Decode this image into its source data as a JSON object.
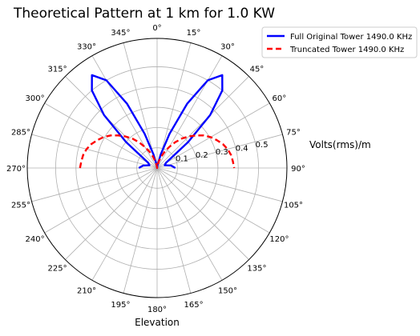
{
  "chart_data": {
    "type": "line",
    "projection": "polar",
    "title": "Theoretical Pattern at 1 km for 1.0 KW",
    "xlabel": "Elevation",
    "ylabel": "Volts(rms)/m",
    "theta_zero": "top",
    "theta_direction": "clockwise",
    "theta_ticks_deg": [
      0,
      15,
      30,
      45,
      60,
      75,
      90,
      105,
      120,
      135,
      150,
      165,
      180,
      195,
      210,
      225,
      240,
      255,
      270,
      285,
      300,
      315,
      330,
      345
    ],
    "theta_tick_labels": [
      "0°",
      "15°",
      "30°",
      "45°",
      "60°",
      "75°",
      "90°",
      "105°",
      "120°",
      "135°",
      "150°",
      "165°",
      "180°",
      "195°",
      "210°",
      "225°",
      "240°",
      "255°",
      "270°",
      "285°",
      "300°",
      "315°",
      "330°",
      "345°"
    ],
    "r_ticks": [
      0.1,
      0.2,
      0.3,
      0.4,
      0.5
    ],
    "r_tick_labels": [
      "0.1",
      "0.2",
      "0.3",
      "0.4",
      "0.5"
    ],
    "rlim": [
      0,
      0.64
    ],
    "grid": true,
    "legend_position": "top-right",
    "series": [
      {
        "name": "Full Original Tower 1490.0 KHz",
        "color": "#0000ff",
        "linestyle": "solid",
        "theta_deg": [
          -90,
          -80,
          -70,
          -60,
          -50,
          -45,
          -40,
          -35,
          -30,
          -25,
          -20,
          -15,
          -10,
          -5,
          0,
          5,
          10,
          15,
          20,
          25,
          30,
          35,
          40,
          45,
          50,
          60,
          70,
          80,
          90
        ],
        "r": [
          0.09,
          0.07,
          0.04,
          0.05,
          0.2,
          0.37,
          0.5,
          0.56,
          0.5,
          0.35,
          0.18,
          0.07,
          0.02,
          0.005,
          0.0,
          0.005,
          0.02,
          0.07,
          0.18,
          0.35,
          0.5,
          0.56,
          0.5,
          0.37,
          0.2,
          0.05,
          0.04,
          0.07,
          0.09
        ]
      },
      {
        "name": "Truncated Tower 1490.0 KHz",
        "color": "#ff0000",
        "linestyle": "dashed",
        "theta_deg": [
          -90,
          -85,
          -80,
          -75,
          -70,
          -65,
          -60,
          -55,
          -50,
          -45,
          -40,
          -35,
          -30,
          -25,
          -20,
          -15,
          -10,
          -5,
          0,
          5,
          10,
          15,
          20,
          25,
          30,
          35,
          40,
          45,
          50,
          55,
          60,
          65,
          70,
          75,
          80,
          85,
          90
        ],
        "r": [
          0.38,
          0.375,
          0.37,
          0.36,
          0.345,
          0.325,
          0.305,
          0.28,
          0.25,
          0.22,
          0.19,
          0.155,
          0.12,
          0.09,
          0.06,
          0.035,
          0.015,
          0.005,
          0.0,
          0.005,
          0.015,
          0.035,
          0.06,
          0.09,
          0.12,
          0.155,
          0.19,
          0.22,
          0.25,
          0.28,
          0.305,
          0.325,
          0.345,
          0.36,
          0.37,
          0.375,
          0.38
        ]
      }
    ]
  }
}
